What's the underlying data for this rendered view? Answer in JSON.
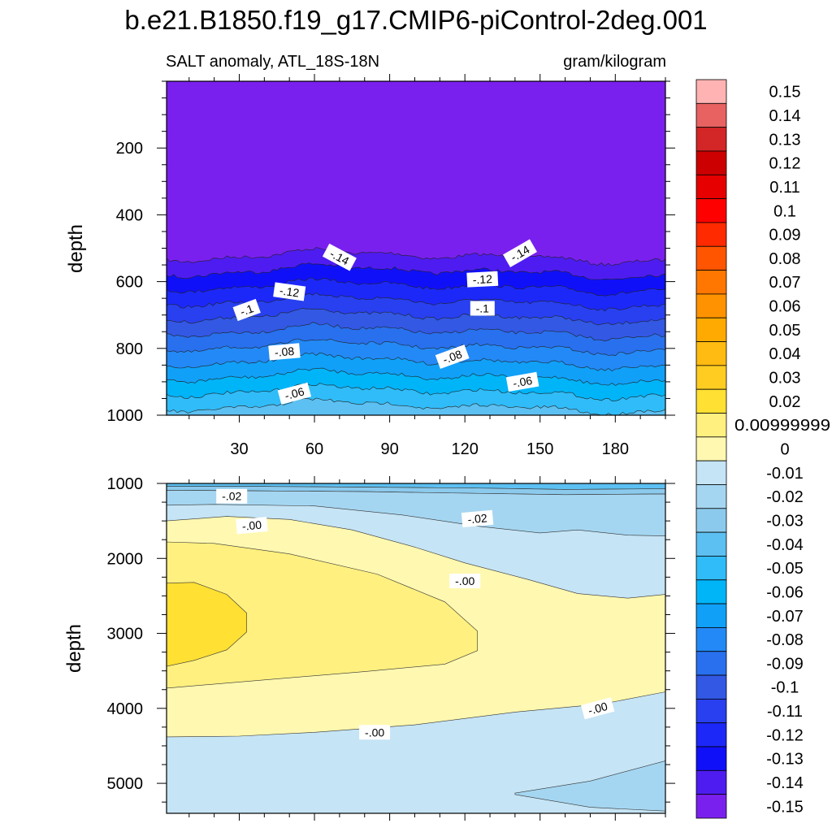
{
  "chart_data": {
    "type": "contour",
    "title": "b.e21.B1850.f19_g17.CMIP6-piControl-2deg.001",
    "left_subtitle": "SALT anomaly, ATL_18S-18N",
    "right_subtitle": "gram/kilogram",
    "xlabel": "",
    "ylabel": "depth",
    "xlim": [
      1,
      200
    ],
    "x_ticks": [
      30,
      60,
      90,
      120,
      150,
      180
    ],
    "x_tick_labels": [
      "30",
      "60",
      "90",
      "120",
      "150",
      "180"
    ],
    "panels": [
      {
        "name": "upper",
        "ylim": [
          0,
          1000
        ],
        "y_ticks": [
          200,
          400,
          600,
          800,
          1000
        ],
        "y_tick_labels": [
          "200",
          "400",
          "600",
          "800",
          "1000"
        ],
        "contour_labels": [
          {
            "text": "-.14",
            "x": 70,
            "depth": 527,
            "angle": 28
          },
          {
            "text": "-.14",
            "x": 142,
            "depth": 515,
            "angle": -30
          },
          {
            "text": "-.12",
            "x": 50,
            "depth": 630,
            "angle": 8
          },
          {
            "text": "-.12",
            "x": 127,
            "depth": 593,
            "angle": -3
          },
          {
            "text": "-.1",
            "x": 33,
            "depth": 685,
            "angle": -20
          },
          {
            "text": "-.1",
            "x": 127,
            "depth": 680,
            "angle": 0
          },
          {
            "text": "-.08",
            "x": 48,
            "depth": 810,
            "angle": -5
          },
          {
            "text": "-.08",
            "x": 115,
            "depth": 825,
            "angle": -20
          },
          {
            "text": "-.06",
            "x": 52,
            "depth": 935,
            "angle": -15
          },
          {
            "text": "-.06",
            "x": 143,
            "depth": 900,
            "angle": -10
          }
        ],
        "levels_top_to_bottom": [
          -0.15,
          -0.14,
          -0.13,
          -0.12,
          -0.11,
          -0.1,
          -0.09,
          -0.08,
          -0.07,
          -0.06,
          -0.05,
          -0.04
        ]
      },
      {
        "name": "lower",
        "ylim": [
          1000,
          5400
        ],
        "y_ticks": [
          1000,
          2000,
          3000,
          4000,
          5000
        ],
        "y_tick_labels": [
          "1000",
          "2000",
          "3000",
          "4000",
          "5000"
        ],
        "contour_labels": [
          {
            "text": "-.02",
            "x": 27,
            "depth": 1170,
            "angle": 0
          },
          {
            "text": "-.02",
            "x": 125,
            "depth": 1470,
            "angle": -5
          },
          {
            "text": "-.00",
            "x": 35,
            "depth": 1560,
            "angle": -5
          },
          {
            "text": "-.00",
            "x": 120,
            "depth": 2300,
            "angle": 0
          },
          {
            "text": "-.00",
            "x": 84,
            "depth": 4320,
            "angle": 0
          },
          {
            "text": "-.00",
            "x": 173,
            "depth": 4000,
            "angle": -15
          }
        ]
      }
    ],
    "colorbar": {
      "labels": [
        "0.15",
        "0.14",
        "0.13",
        "0.12",
        "0.11",
        "0.1",
        "0.09",
        "0.08",
        "0.07",
        "0.06",
        "0.05",
        "0.04",
        "0.03",
        "0.02",
        "0.00999999",
        "0",
        "-0.01",
        "-0.02",
        "-0.03",
        "-0.04",
        "-0.05",
        "-0.06",
        "-0.07",
        "-0.08",
        "-0.09",
        "-0.1",
        "-0.11",
        "-0.12",
        "-0.13",
        "-0.14",
        "-0.15"
      ],
      "colors": [
        "#FFB3B3",
        "#E86262",
        "#D32626",
        "#CC0000",
        "#E60000",
        "#FF0000",
        "#FF2A00",
        "#FF5500",
        "#FF7700",
        "#FF9200",
        "#FFAA00",
        "#FFBB11",
        "#FFCC22",
        "#FFE033",
        "#FFF080",
        "#FFF8B0",
        "#C5E4F5",
        "#A5D6F1",
        "#8CCAED",
        "#5CC0F2",
        "#30BCF8",
        "#00B4F8",
        "#10A0F8",
        "#2389F6",
        "#2870EE",
        "#3258E4",
        "#2840F0",
        "#1C28F8",
        "#1010F8",
        "#4E1CF0",
        "#7A20EE"
      ]
    }
  }
}
